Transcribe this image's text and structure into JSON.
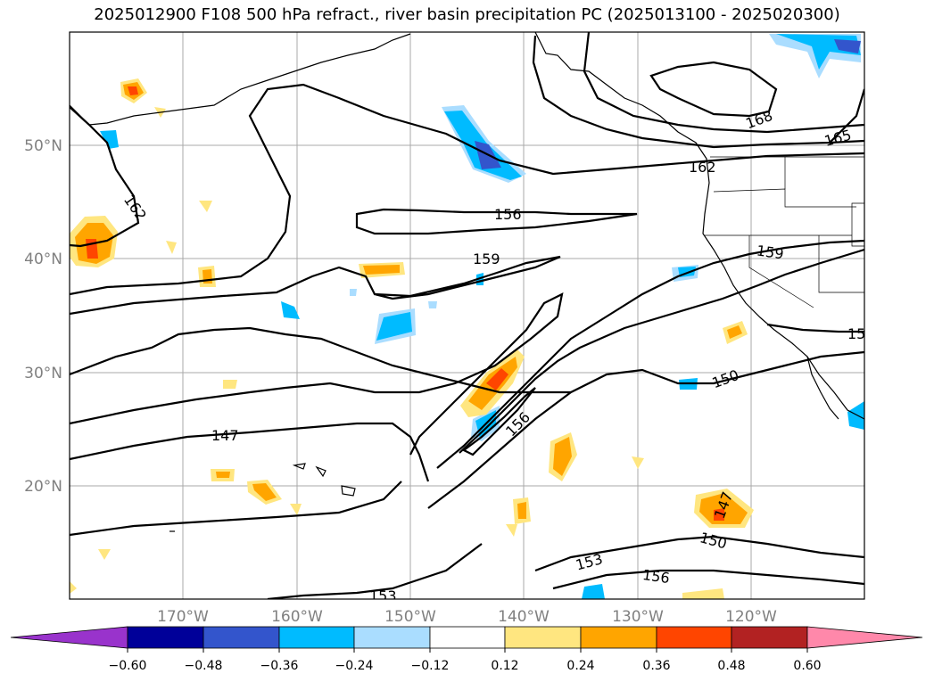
{
  "title": "2025012900 F108 500 hPa refract., river basin precipitation PC (2025013100 - 2025020300)",
  "map": {
    "lon_ticks": [
      "170°W",
      "160°W",
      "150°W",
      "140°W",
      "130°W",
      "120°W"
    ],
    "lat_ticks": [
      "50°N",
      "40°N",
      "30°N",
      "20°N"
    ],
    "contour_labels": [
      "162",
      "156",
      "159",
      "168",
      "165",
      "162",
      "159",
      "156",
      "150",
      "147",
      "147",
      "150",
      "153",
      "156",
      "153",
      "15"
    ]
  },
  "colorbar": {
    "labels": [
      "−0.60",
      "−0.48",
      "−0.36",
      "−0.24",
      "−0.12",
      "0.12",
      "0.24",
      "0.36",
      "0.48",
      "0.60"
    ],
    "colors": [
      "#9933cc",
      "#000099",
      "#3355cc",
      "#00bbff",
      "#aaddff",
      "#ffffff",
      "#ffe680",
      "#ffa500",
      "#ff4500",
      "#b22222",
      "#ff88aa"
    ]
  }
}
